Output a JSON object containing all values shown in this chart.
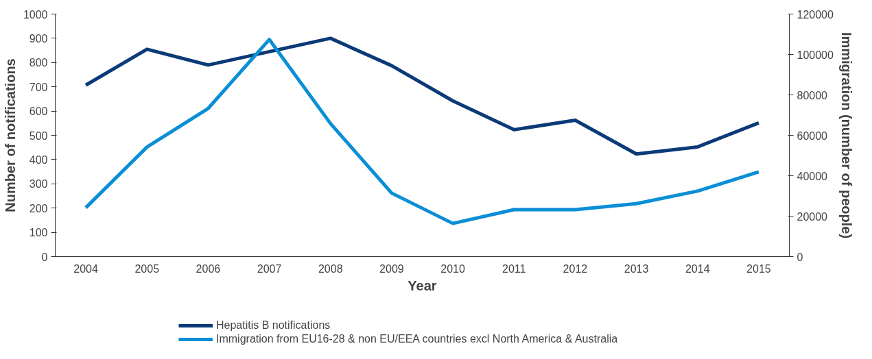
{
  "chart_data": {
    "type": "line",
    "xlabel": "Year",
    "ylabel": "Number of notifications",
    "y2label": "Immigration (number of people)",
    "categories": [
      "2004",
      "2005",
      "2006",
      "2007",
      "2008",
      "2009",
      "2010",
      "2011",
      "2012",
      "2013",
      "2014",
      "2015"
    ],
    "series": [
      {
        "name": "Hepatitis B notifications",
        "color": "#0b3a78",
        "values": [
          707,
          855,
          790,
          845,
          900,
          787,
          642,
          523,
          562,
          423,
          452,
          551
        ]
      },
      {
        "name": "Immigration from EU16-28 & non EU/EEA countries excl North America & Australia",
        "color": "#0a8fd6",
        "axis": "y2",
        "values": [
          24200,
          54200,
          73300,
          107400,
          65800,
          31400,
          16400,
          23200,
          23200,
          26200,
          32400,
          41900
        ]
      }
    ],
    "ylim": [
      0,
      1000
    ],
    "yticks": [
      0,
      100,
      200,
      300,
      400,
      500,
      600,
      700,
      800,
      900,
      1000
    ],
    "y2lim": [
      0,
      120000
    ],
    "y2ticks": [
      0,
      20000,
      40000,
      60000,
      80000,
      100000,
      120000
    ],
    "legend": "bottom",
    "line_style": "solid"
  }
}
